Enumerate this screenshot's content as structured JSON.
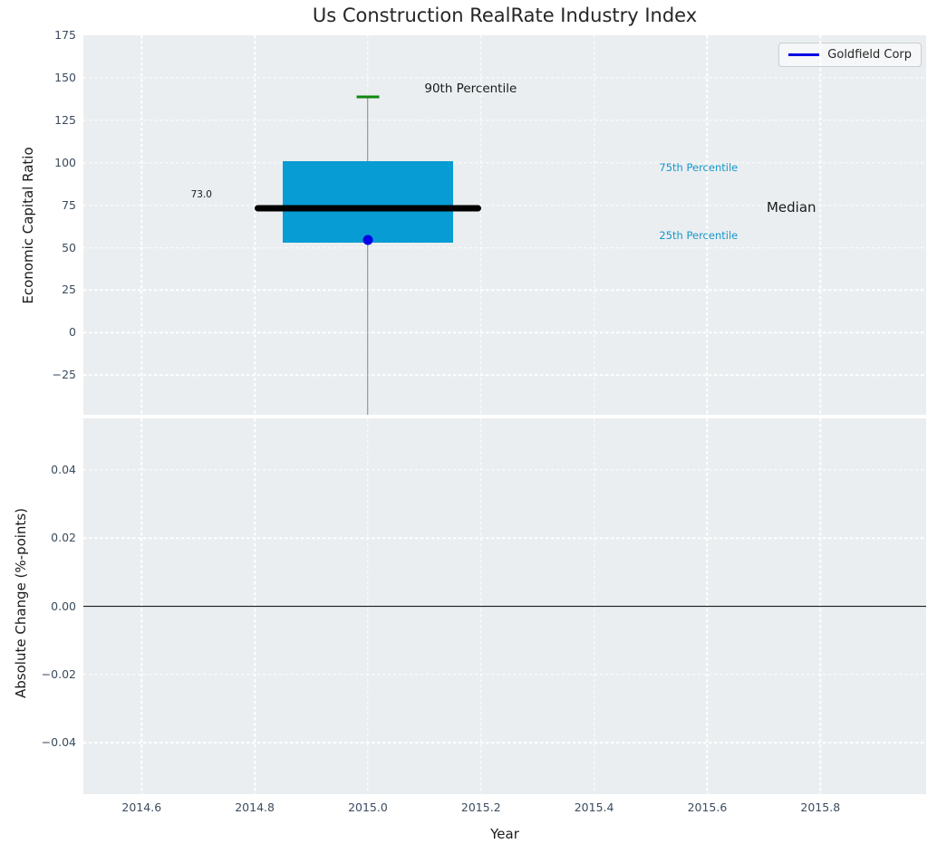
{
  "colors": {
    "figure_bg": "#ffffff",
    "axes_bg": "#eaeef0",
    "grid": "#ffffff",
    "tick_label": "#3b4c5e",
    "text": "#262626",
    "box_fill": "#079cd3",
    "median": "#000000",
    "whisker": "#848484",
    "p90_cap": "#0e870e",
    "series_blue": "#0000e6",
    "percentile_label": "#1898cb",
    "zero_line": "#000000"
  },
  "chart_data": [
    {
      "id": "capital_ratio_panel",
      "type": "boxplot",
      "title": "Us Construction RealRate Industry Index",
      "ylabel": "Economic Capital Ratio",
      "xlim": [
        2014.497,
        2015.987
      ],
      "ylim": [
        -48.3,
        175
      ],
      "grid": true,
      "yticks": [
        "175",
        "150",
        "125",
        "100",
        "75",
        "50",
        "25",
        "0",
        "−25"
      ],
      "ytick_values": [
        175,
        150,
        125,
        100,
        75,
        50,
        25,
        0,
        -25
      ],
      "legend": {
        "position": "upper right",
        "entries": [
          {
            "label": "Goldfield Corp",
            "color": "#0000e6"
          }
        ]
      },
      "box": {
        "x": 2015.0,
        "median": 73.0,
        "q1": 53.0,
        "q3": 101.0,
        "p90": 138.5,
        "p10_note": "lower whisker clipped below axis",
        "box_half_width": 0.15,
        "median_half_width": 0.2,
        "cap_half_width": 0.02,
        "company_point": {
          "name": "Goldfield Corp",
          "x": 2015.0,
          "y": 54.5
        }
      },
      "annotations": [
        {
          "text": "90th Percentile",
          "x": 2015.1,
          "y": 143.8,
          "color": "#1a1a1a",
          "size": 13.5
        },
        {
          "text": "75th Percentile",
          "x": 2015.515,
          "y": 97.0,
          "color": "#1898cb",
          "size": 11.5
        },
        {
          "text": "Median",
          "x": 2015.705,
          "y": 73.5,
          "color": "#1a1a1a",
          "size": 15
        },
        {
          "text": "25th Percentile",
          "x": 2015.515,
          "y": 57.0,
          "color": "#1898cb",
          "size": 11.5
        },
        {
          "text": "73.0",
          "x": 2014.687,
          "y": 81.0,
          "color": "#1a1a1a",
          "size": 10.5
        }
      ]
    },
    {
      "id": "absolute_change_panel",
      "type": "line",
      "ylabel": "Absolute Change (%-points)",
      "xlabel": "Year",
      "xlim": [
        2014.497,
        2015.987
      ],
      "ylim": [
        -0.0551,
        0.0551
      ],
      "grid": true,
      "yticks": [
        "0.04",
        "0.02",
        "0.00",
        "−0.02",
        "−0.04"
      ],
      "ytick_values": [
        0.04,
        0.02,
        0.0,
        -0.02,
        -0.04
      ],
      "xticks": [
        "2014.6",
        "2014.8",
        "2015.0",
        "2015.2",
        "2015.4",
        "2015.6",
        "2015.8"
      ],
      "xtick_values": [
        2014.6,
        2014.8,
        2015.0,
        2015.2,
        2015.4,
        2015.6,
        2015.8
      ],
      "zero_line": 0.0,
      "series": []
    }
  ]
}
